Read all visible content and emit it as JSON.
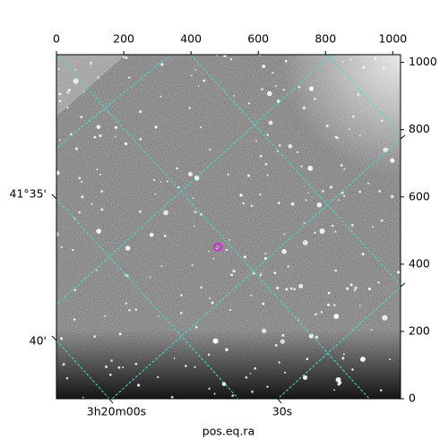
{
  "chart_data": {
    "type": "image",
    "xlabel": "pos.eq.ra",
    "xlim": [
      0,
      1023
    ],
    "ylim": [
      0,
      1023
    ],
    "xticks": [
      0,
      200,
      400,
      600,
      800,
      1000
    ],
    "yticks": [
      0,
      200,
      400,
      600,
      800,
      1000
    ],
    "world_x_labels": [
      "3h20m00s",
      "30s"
    ],
    "world_y_labels": [
      "41°35'",
      "40'"
    ],
    "grid_color": "#40e0d0",
    "marker": {
      "x": 480,
      "y": 451,
      "color": "#ff00ff"
    }
  }
}
